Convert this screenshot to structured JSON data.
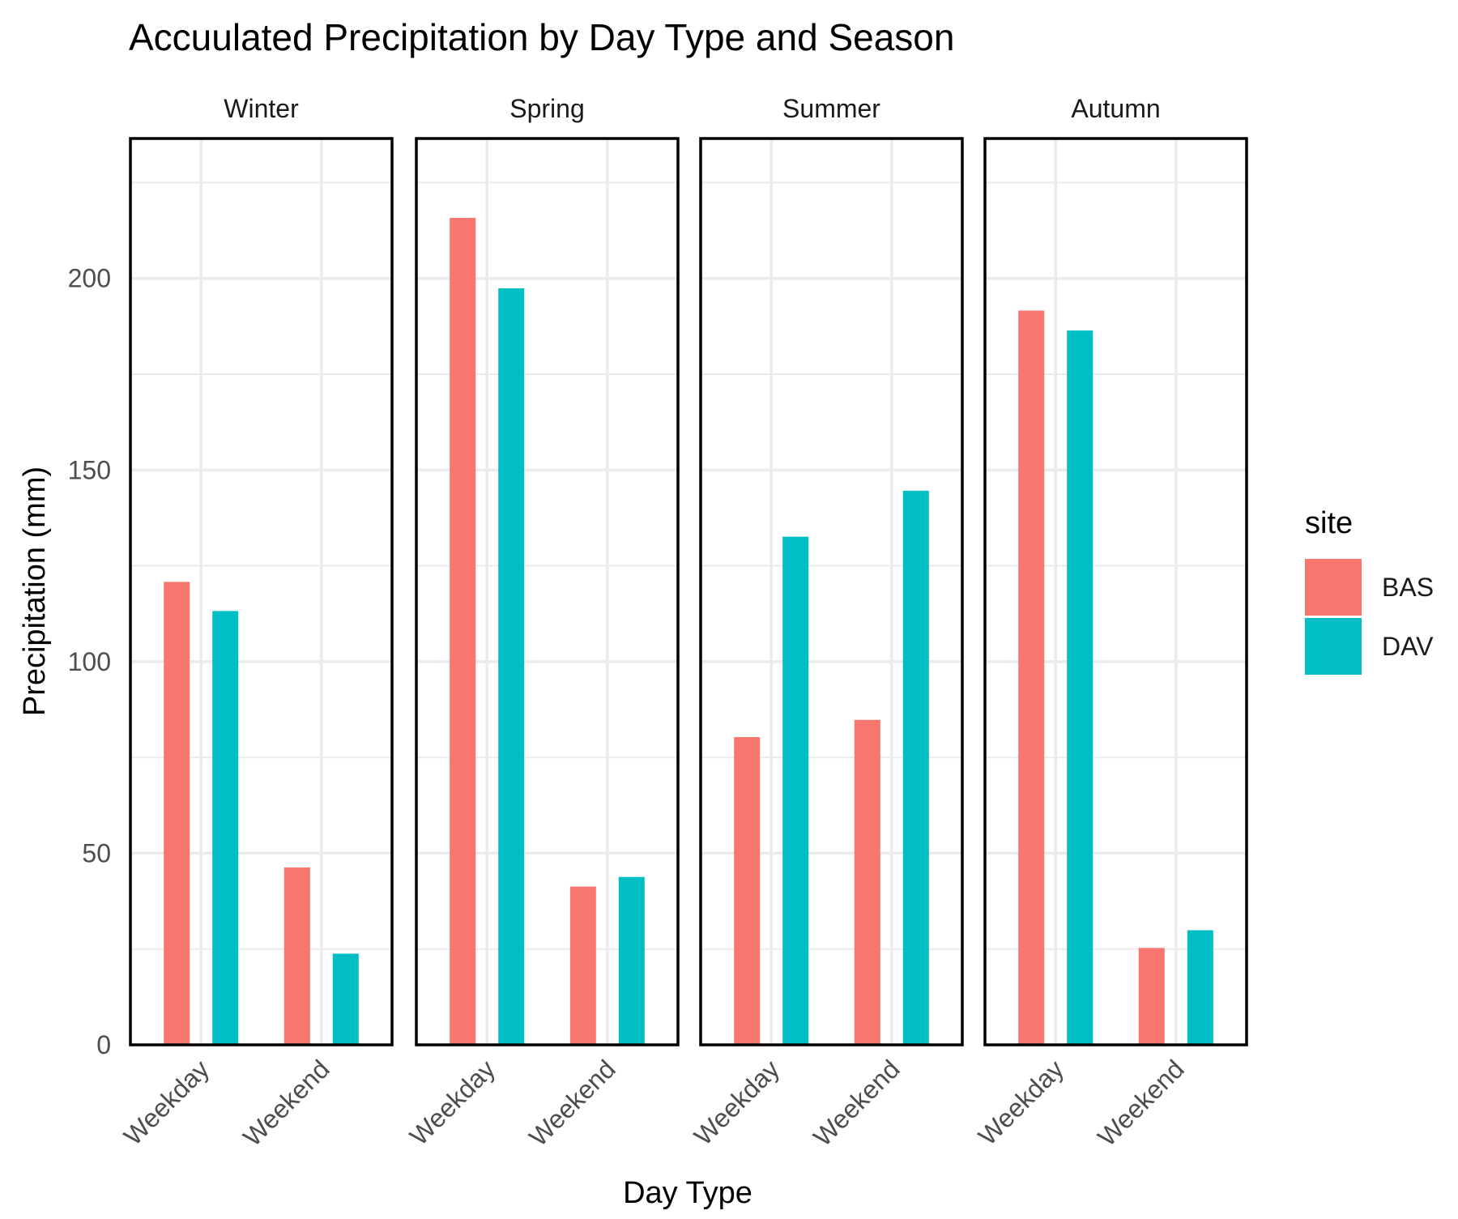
{
  "chart_data": {
    "type": "bar",
    "title": "Accuulated Precipitation by Day Type and Season",
    "xlabel": "Day Type",
    "ylabel": "Precipitation (mm)",
    "ylim": [
      0,
      236.5
    ],
    "yticks": [
      0,
      50,
      100,
      150,
      200
    ],
    "y_tick_labels": [
      "0",
      "50",
      "100",
      "150",
      "200"
    ],
    "categories": [
      "Weekday",
      "Weekend"
    ],
    "grid": true,
    "legend": {
      "title": "site",
      "position": "right",
      "entries": [
        "BAS",
        "DAV"
      ]
    },
    "colors": {
      "BAS": "#F8766D",
      "DAV": "#00BFC4"
    },
    "facets": [
      {
        "label": "Winter",
        "series": [
          {
            "name": "BAS",
            "values": [
              120.8,
              46.3
            ]
          },
          {
            "name": "DAV",
            "values": [
              113.2,
              23.8
            ]
          }
        ]
      },
      {
        "label": "Spring",
        "series": [
          {
            "name": "BAS",
            "values": [
              215.8,
              41.3
            ]
          },
          {
            "name": "DAV",
            "values": [
              197.4,
              43.8
            ]
          }
        ]
      },
      {
        "label": "Summer",
        "series": [
          {
            "name": "BAS",
            "values": [
              80.3,
              84.8
            ]
          },
          {
            "name": "DAV",
            "values": [
              132.6,
              144.6
            ]
          }
        ]
      },
      {
        "label": "Autumn",
        "series": [
          {
            "name": "BAS",
            "values": [
              191.6,
              25.3
            ]
          },
          {
            "name": "DAV",
            "values": [
              186.4,
              29.9
            ]
          }
        ]
      }
    ]
  }
}
